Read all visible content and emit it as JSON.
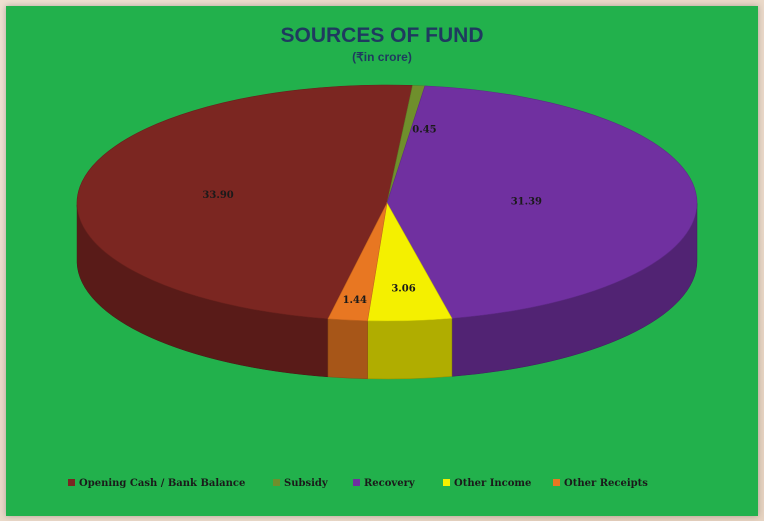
{
  "chart_data": {
    "type": "pie",
    "title": "SOURCES OF FUND",
    "subtitle": "(₹in crore)",
    "series": [
      {
        "name": "Opening Cash / Bank Balance",
        "value": 33.9,
        "label": "33.90",
        "color": "#7b2621"
      },
      {
        "name": "Subsidy",
        "value": 0.45,
        "label": "0.45",
        "color": "#6f8f2c"
      },
      {
        "name": "Recovery",
        "value": 31.39,
        "label": "31.39",
        "color": "#7030a0"
      },
      {
        "name": "Other Income",
        "value": 3.06,
        "label": "3.06",
        "color": "#f4f000"
      },
      {
        "name": "Other Receipts",
        "value": 1.44,
        "label": "1.44",
        "color": "#e87722"
      }
    ],
    "legend_position": "bottom",
    "three_d": true
  },
  "colors": {
    "panel_background": "#22b14c",
    "page_background": "#ead9c9"
  }
}
